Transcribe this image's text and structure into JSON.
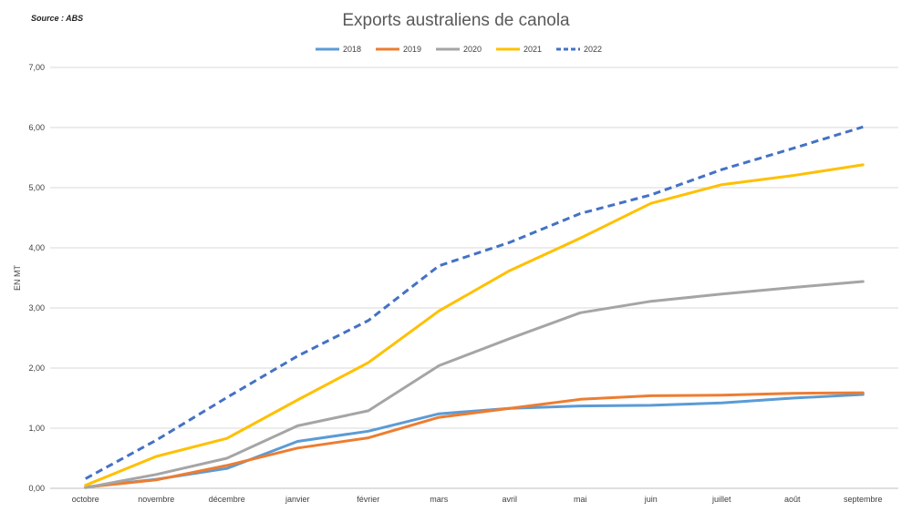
{
  "source": "Source : ABS",
  "chart_data": {
    "type": "line",
    "title": "Exports australiens de canola",
    "xlabel": "",
    "ylabel": "EN MT",
    "ylim": [
      0,
      7
    ],
    "yticks": [
      "0,00",
      "1,00",
      "2,00",
      "3,00",
      "4,00",
      "5,00",
      "6,00",
      "7,00"
    ],
    "grid": true,
    "legend_position": "top",
    "categories": [
      "octobre",
      "novembre",
      "décembre",
      "janvier",
      "février",
      "mars",
      "avril",
      "mai",
      "juin",
      "juillet",
      "août",
      "septembre"
    ],
    "series": [
      {
        "name": "2018",
        "color": "#5B9BD5",
        "dashed": false,
        "values": [
          0.02,
          0.15,
          0.33,
          0.78,
          0.95,
          1.24,
          1.33,
          1.37,
          1.38,
          1.42,
          1.5,
          1.56
        ]
      },
      {
        "name": "2019",
        "color": "#ED7D31",
        "dashed": false,
        "values": [
          0.02,
          0.14,
          0.38,
          0.67,
          0.84,
          1.18,
          1.33,
          1.48,
          1.54,
          1.55,
          1.58,
          1.59
        ]
      },
      {
        "name": "2020",
        "color": "#A5A5A5",
        "dashed": false,
        "values": [
          0.01,
          0.23,
          0.5,
          1.04,
          1.29,
          2.04,
          2.49,
          2.92,
          3.11,
          3.23,
          3.34,
          3.44
        ]
      },
      {
        "name": "2021",
        "color": "#FFC000",
        "dashed": false,
        "values": [
          0.05,
          0.53,
          0.83,
          1.47,
          2.09,
          2.95,
          3.62,
          4.16,
          4.74,
          5.05,
          5.2,
          5.38
        ]
      },
      {
        "name": "2022",
        "color": "#4472C4",
        "dashed": true,
        "values": [
          0.16,
          0.8,
          1.51,
          2.2,
          2.79,
          3.7,
          4.09,
          4.57,
          4.88,
          5.3,
          5.65,
          6.01
        ]
      }
    ]
  }
}
